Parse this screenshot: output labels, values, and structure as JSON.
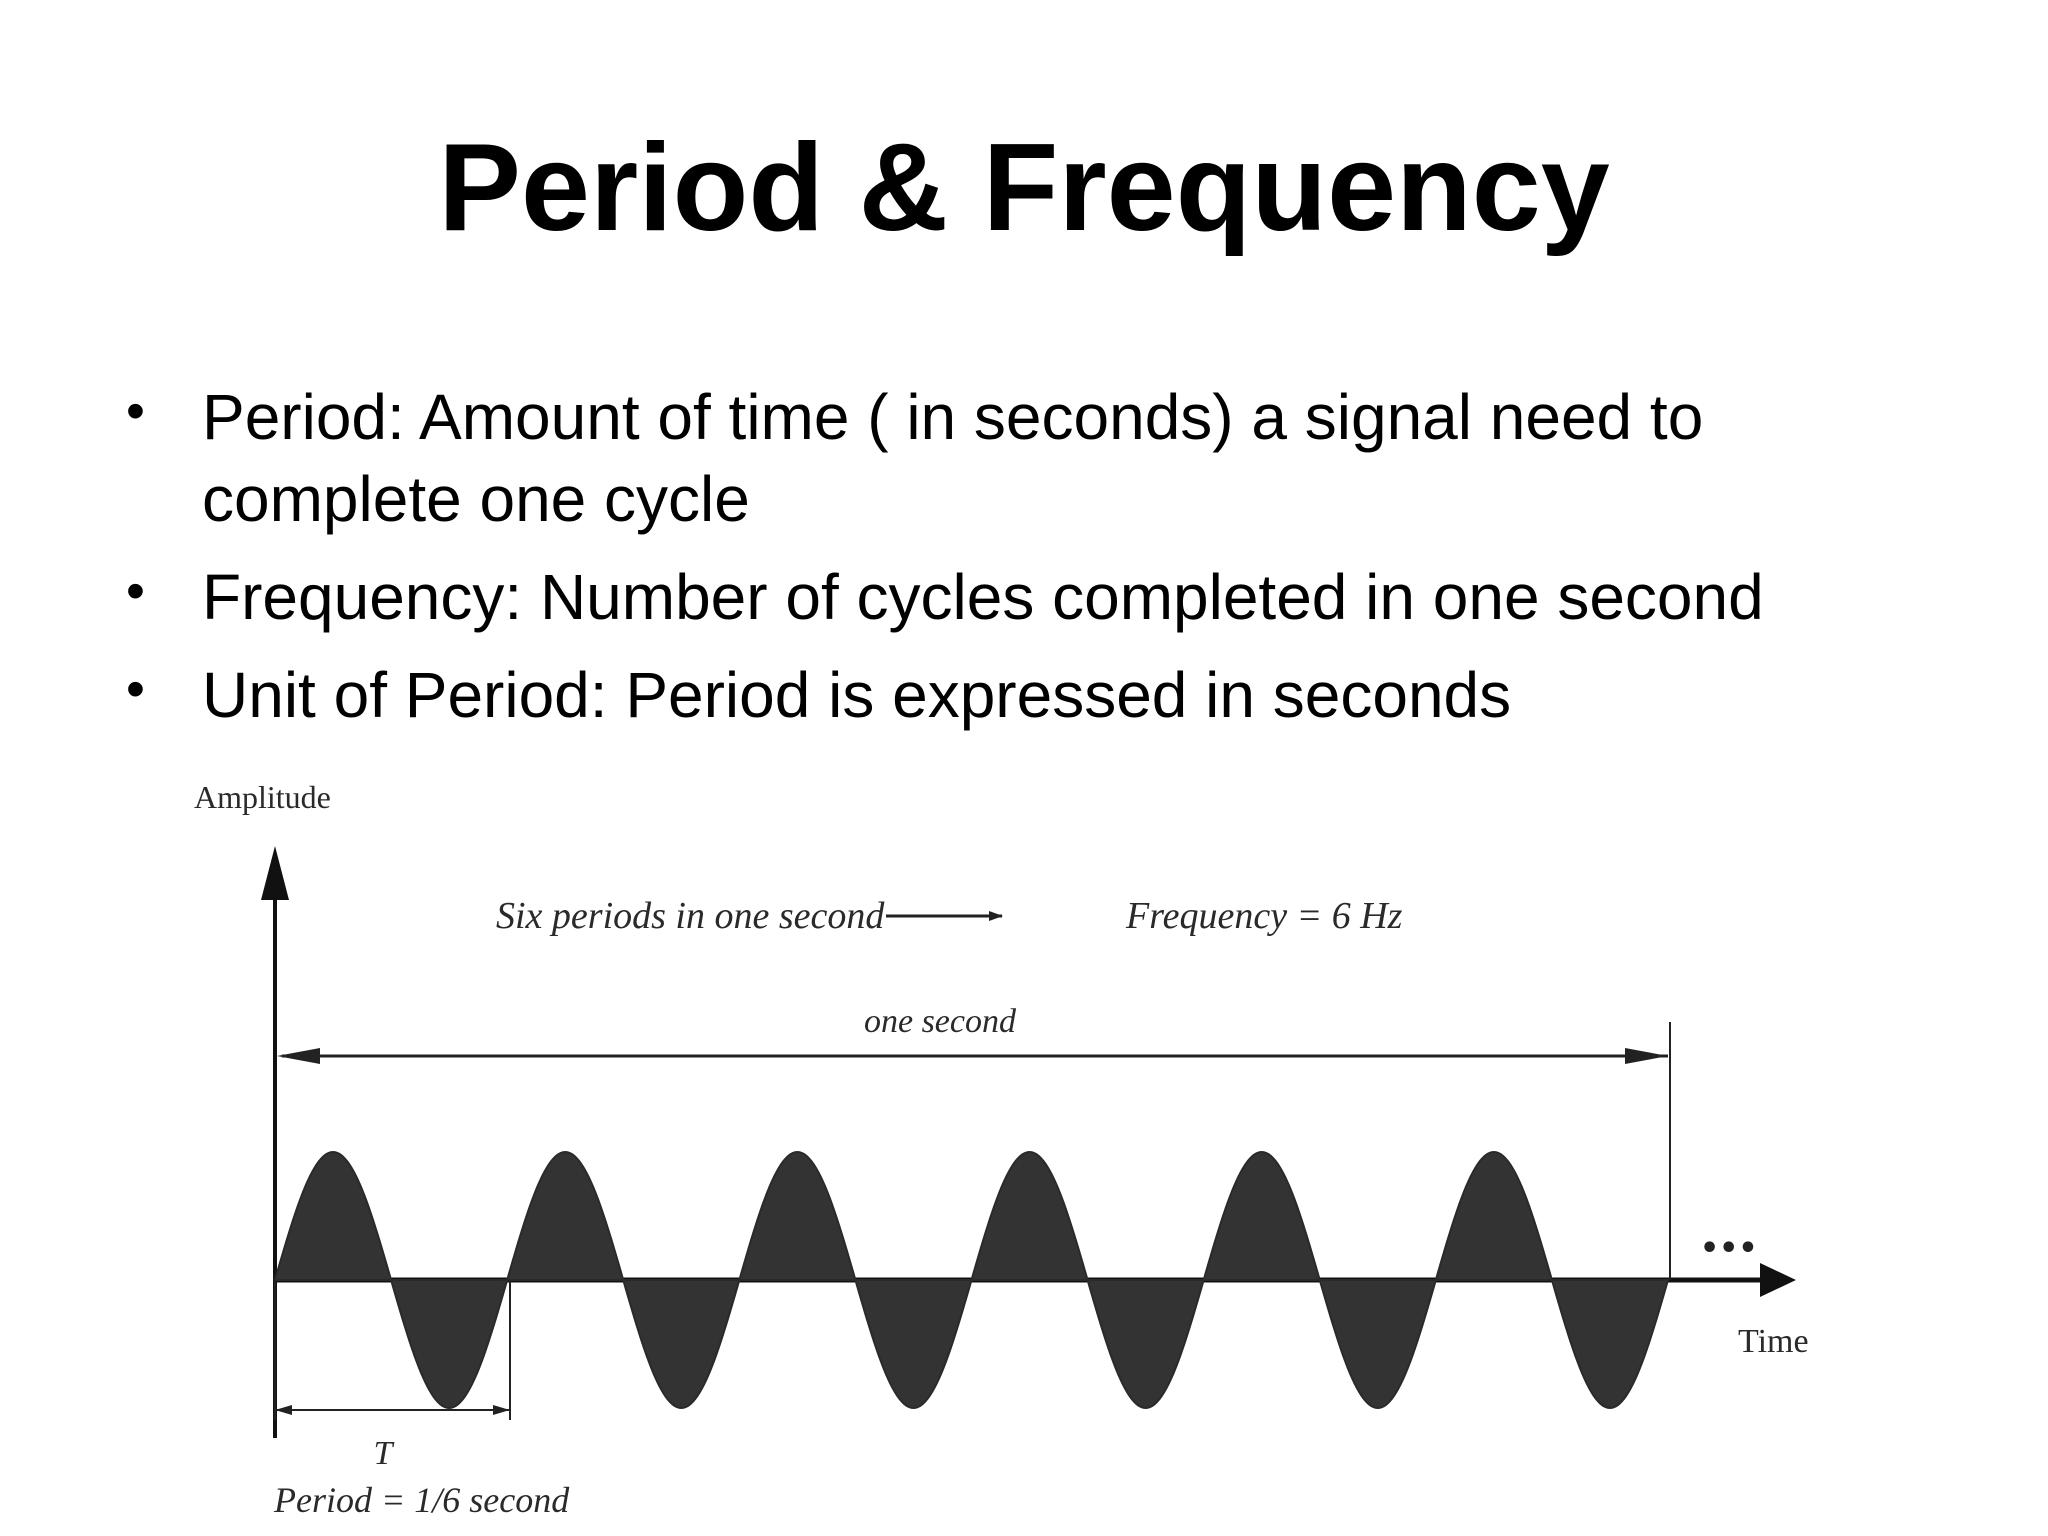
{
  "slide": {
    "title": "Period & Frequency",
    "bullets": [
      "Period: Amount of time ( in seconds) a signal need to complete one cycle",
      "Frequency: Number of cycles completed in one second",
      "Unit of Period: Period is expressed in seconds"
    ]
  },
  "diagram": {
    "y_axis_label": "Amplitude",
    "x_axis_label": "Time",
    "top_note": "Six periods in one second",
    "result_note": "Frequency = 6  Hz",
    "span_label": "one second",
    "period_symbol": "T",
    "period_label": "Period = 1/6  second",
    "ellipsis": "•••",
    "cycles": 6,
    "wave_color": "#333333"
  }
}
